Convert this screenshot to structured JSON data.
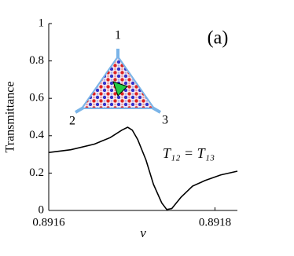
{
  "chart_data": {
    "type": "line",
    "ylabel": "Transmittance",
    "xlabel": "ν",
    "panel_label": "(a)",
    "annotation": "T₁₂ = T₁₃",
    "port_labels": [
      "1",
      "2",
      "3"
    ],
    "x": [
      0.8916,
      0.8916265,
      0.891655,
      0.891674,
      0.891688,
      0.891695,
      0.8917005,
      0.891707,
      0.891717,
      0.891726,
      0.891736,
      0.891742,
      0.891748,
      0.891759,
      0.891773,
      0.891788,
      0.891807,
      0.891827
    ],
    "series": [
      {
        "color": "#000000",
        "values": [
          0.31,
          0.325,
          0.355,
          0.39,
          0.43,
          0.445,
          0.43,
          0.38,
          0.27,
          0.14,
          0.04,
          0.005,
          0.01,
          0.07,
          0.13,
          0.16,
          0.19,
          0.21
        ]
      }
    ],
    "xlim": [
      0.8916,
      0.891827
    ],
    "ylim": [
      0,
      1
    ],
    "xticks": [
      0.8916,
      0.8918
    ],
    "yticks": [
      0,
      0.2,
      0.4,
      0.6,
      0.8,
      1
    ]
  }
}
